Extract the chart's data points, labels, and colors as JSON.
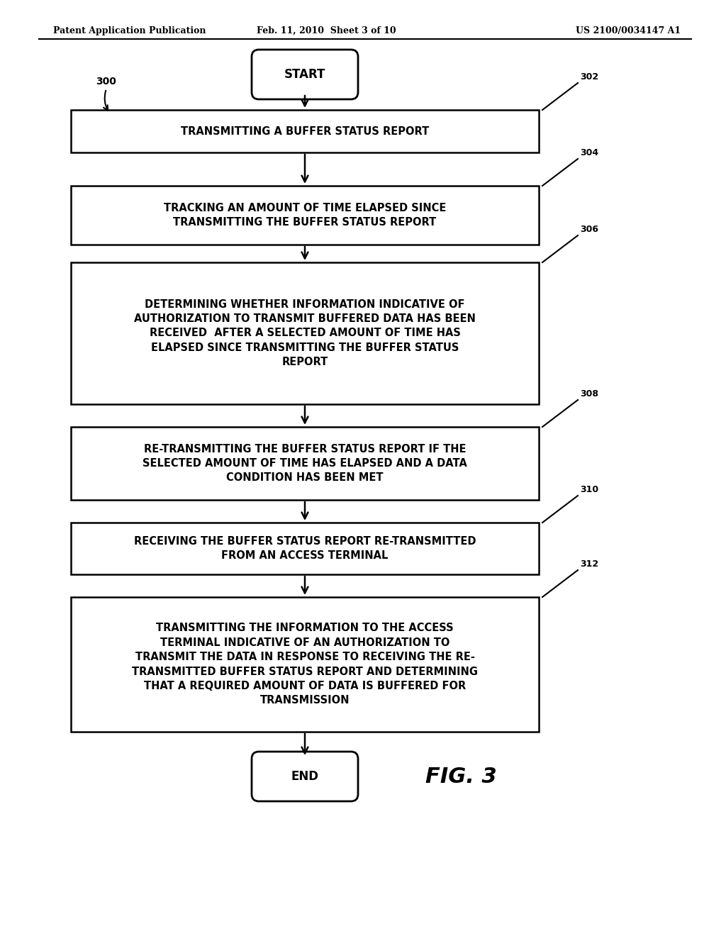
{
  "header_left": "Patent Application Publication",
  "header_mid": "Feb. 11, 2010  Sheet 3 of 10",
  "header_right": "US 2100/0034147 A1",
  "start_label": "START",
  "end_label": "END",
  "fig_label": "FIG. 3",
  "box_texts": {
    "302": "TRANSMITTING A BUFFER STATUS REPORT",
    "304": "TRACKING AN AMOUNT OF TIME ELAPSED SINCE\nTRANSMITTING THE BUFFER STATUS REPORT",
    "306": "DETERMINING WHETHER INFORMATION INDICATIVE OF\nAUTHORIZATION TO TRANSMIT BUFFERED DATA HAS BEEN\nRECEIVED  AFTER A SELECTED AMOUNT OF TIME HAS\nELAPSED SINCE TRANSMITTING THE BUFFER STATUS\nREPORT",
    "308": "RE-TRANSMITTING THE BUFFER STATUS REPORT IF THE\nSELECTED AMOUNT OF TIME HAS ELAPSED AND A DATA\nCONDITION HAS BEEN MET",
    "310": "RECEIVING THE BUFFER STATUS REPORT RE-TRANSMITTED\nFROM AN ACCESS TERMINAL",
    "312": "TRANSMITTING THE INFORMATION TO THE ACCESS\nTERMINAL INDICATIVE OF AN AUTHORIZATION TO\nTRANSMIT THE DATA IN RESPONSE TO RECEIVING THE RE-\nTRANSMITTED BUFFER STATUS REPORT AND DETERMINING\nTHAT A REQUIRED AMOUNT OF DATA IS BUFFERED FOR\nTRANSMISSION"
  },
  "bg_color": "#ffffff",
  "text_color": "#000000"
}
